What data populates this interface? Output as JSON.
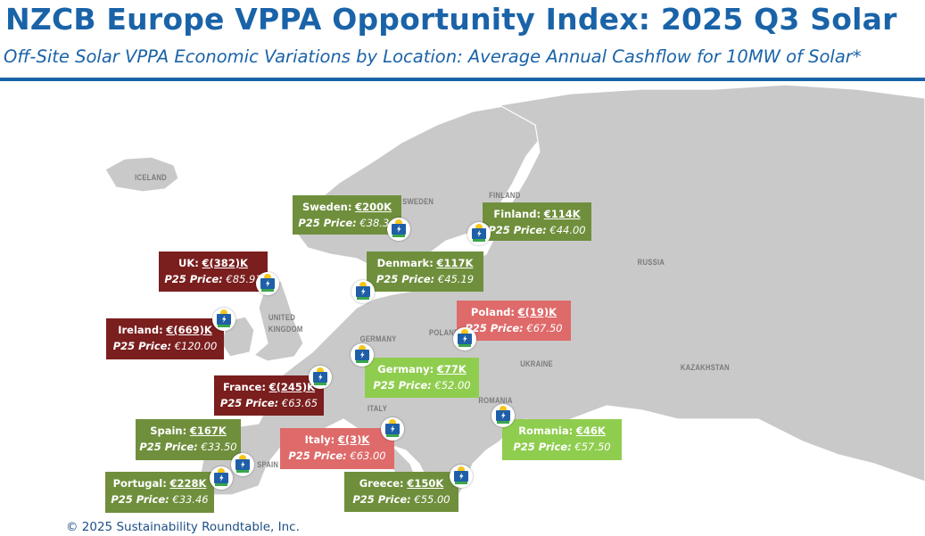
{
  "header": {
    "title": "NZCB Europe VPPA Opportunity Index: 2025 Q3 Solar",
    "subtitle": "Off-Site Solar VPPA Economic Variations by Location: Average Annual Cashflow for 10MW of Solar*"
  },
  "colors": {
    "title_blue": "#1a63a8",
    "dark_green": "#6f8f3c",
    "light_green": "#8fcd4f",
    "dark_red": "#7a1e1e",
    "light_red": "#df6a6a",
    "land": "#c9c9c9"
  },
  "price_label": "P25 Price:",
  "map_labels": {
    "iceland": "ICELAND",
    "sweden": "SWEDEN",
    "finland": "FINLAND",
    "russia": "RUSSIA",
    "uk": "UNITED KINGDOM",
    "germany": "GERMANY",
    "poland": "POLAND",
    "ukraine": "UKRAINE",
    "kazakhstan": "KAZAKHSTAN",
    "romania": "ROMANIA",
    "italy": "ITALY",
    "spain": "SPAIN"
  },
  "locations": [
    {
      "name": "Sweden:",
      "cashflow": "€200K",
      "price": "€38.34",
      "icon": "solar-panel-icon"
    },
    {
      "name": "Finland:",
      "cashflow": "€114K",
      "price": "€44.00",
      "icon": "solar-panel-icon"
    },
    {
      "name": "UK:",
      "cashflow": "€(382)K",
      "price": "€85.91",
      "icon": "solar-panel-icon"
    },
    {
      "name": "Denmark:",
      "cashflow": "€117K",
      "price": "€45.19",
      "icon": "solar-panel-icon"
    },
    {
      "name": "Poland:",
      "cashflow": "€(19)K",
      "price": "€67.50",
      "icon": "solar-panel-icon"
    },
    {
      "name": "Ireland:",
      "cashflow": "€(669)K",
      "price": "€120.00",
      "icon": "solar-panel-icon"
    },
    {
      "name": "Germany:",
      "cashflow": "€77K",
      "price": "€52.00",
      "icon": "solar-panel-icon"
    },
    {
      "name": "France:",
      "cashflow": "€(245)K",
      "price": "€63.65",
      "icon": "solar-panel-icon"
    },
    {
      "name": "Spain:",
      "cashflow": "€167K",
      "price": "€33.50",
      "icon": "solar-panel-icon"
    },
    {
      "name": "Italy:",
      "cashflow": "€(3)K",
      "price": "€63.00",
      "icon": "solar-panel-icon"
    },
    {
      "name": "Romania:",
      "cashflow": "€46K",
      "price": "€57.50",
      "icon": "solar-panel-icon"
    },
    {
      "name": "Portugal:",
      "cashflow": "€228K",
      "price": "€33.46",
      "icon": "solar-panel-icon"
    },
    {
      "name": "Greece:",
      "cashflow": "€150K",
      "price": "€55.00",
      "icon": "solar-panel-icon"
    }
  ],
  "footer": "© 2025 Sustainability Roundtable, Inc."
}
